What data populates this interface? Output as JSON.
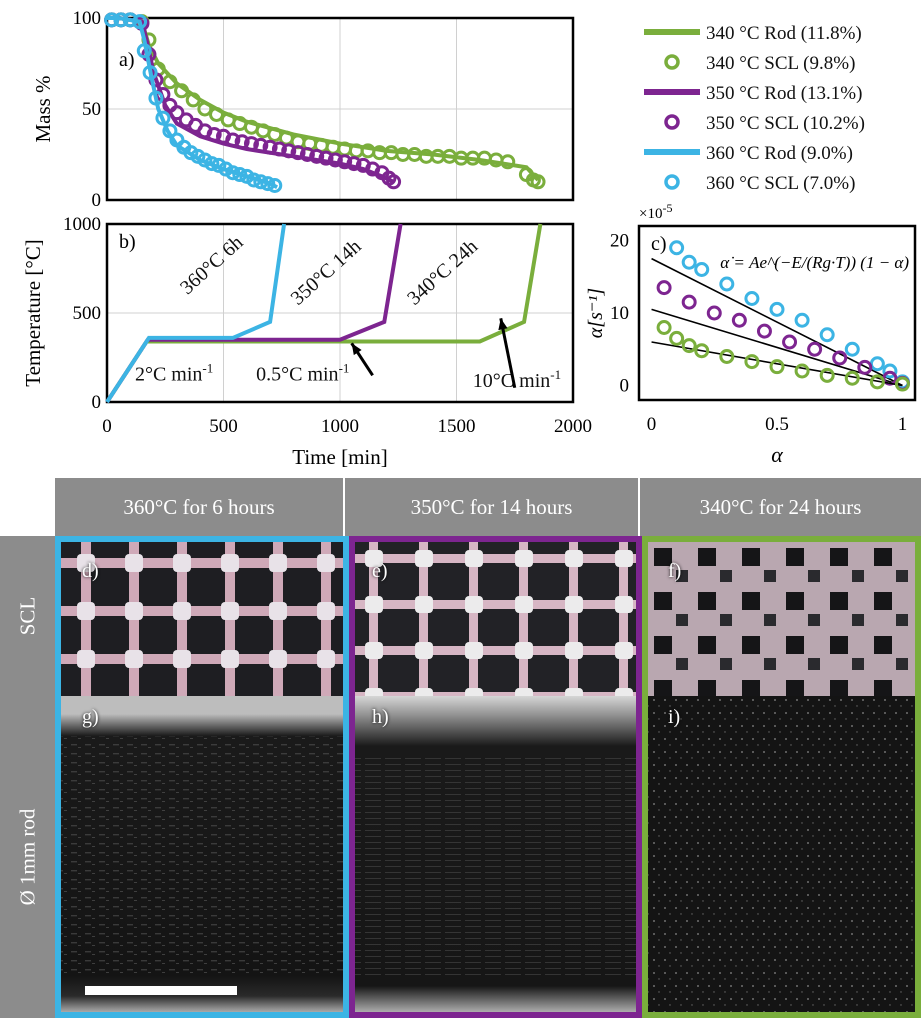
{
  "colors": {
    "c340": "#7aae3c",
    "c350": "#7d2590",
    "c360": "#3cb4e4",
    "header_bg": "#8c8c8c"
  },
  "legend": [
    {
      "label": "340 °C Rod (11.8%)",
      "color": "#7aae3c",
      "style": "line"
    },
    {
      "label": "340 °C SCL (9.8%)",
      "color": "#7aae3c",
      "style": "circle"
    },
    {
      "label": "350 °C Rod (13.1%)",
      "color": "#7d2590",
      "style": "line"
    },
    {
      "label": "350 °C SCL (10.2%)",
      "color": "#7d2590",
      "style": "circle"
    },
    {
      "label": "360 °C Rod (9.0%)",
      "color": "#3cb4e4",
      "style": "line"
    },
    {
      "label": "360 °C SCL (7.0%)",
      "color": "#3cb4e4",
      "style": "circle"
    }
  ],
  "chart_data": [
    {
      "type": "line",
      "panel_label": "a)",
      "ylabel": "Mass %",
      "xlim": [
        0,
        2000
      ],
      "ylim": [
        0,
        100
      ],
      "yticks": [
        0,
        50,
        100
      ],
      "series": [
        {
          "name": "340 °C Rod (11.8%)",
          "color": "#7aae3c",
          "style": "line",
          "points": [
            [
              0,
              100
            ],
            [
              50,
              100
            ],
            [
              150,
              98
            ],
            [
              180,
              85
            ],
            [
              220,
              75
            ],
            [
              300,
              64
            ],
            [
              400,
              55
            ],
            [
              500,
              48
            ],
            [
              600,
              43
            ],
            [
              800,
              36
            ],
            [
              1000,
              31
            ],
            [
              1200,
              27
            ],
            [
              1400,
              25
            ],
            [
              1600,
              22
            ],
            [
              1800,
              18
            ],
            [
              1850,
              11
            ]
          ]
        },
        {
          "name": "340 °C SCL (9.8%)",
          "color": "#7aae3c",
          "style": "circle",
          "points": [
            [
              20,
              99
            ],
            [
              60,
              99
            ],
            [
              100,
              99
            ],
            [
              150,
              98
            ],
            [
              180,
              88
            ],
            [
              220,
              72
            ],
            [
              270,
              65
            ],
            [
              320,
              60
            ],
            [
              370,
              55
            ],
            [
              420,
              50
            ],
            [
              470,
              47
            ],
            [
              520,
              44
            ],
            [
              570,
              42
            ],
            [
              620,
              40
            ],
            [
              670,
              38
            ],
            [
              720,
              36
            ],
            [
              770,
              34
            ],
            [
              820,
              32
            ],
            [
              870,
              31
            ],
            [
              920,
              30
            ],
            [
              970,
              29
            ],
            [
              1020,
              28
            ],
            [
              1070,
              27
            ],
            [
              1120,
              27
            ],
            [
              1170,
              26
            ],
            [
              1220,
              26
            ],
            [
              1270,
              25
            ],
            [
              1320,
              25
            ],
            [
              1370,
              24
            ],
            [
              1420,
              24
            ],
            [
              1470,
              24
            ],
            [
              1520,
              23
            ],
            [
              1570,
              23
            ],
            [
              1620,
              23
            ],
            [
              1670,
              22
            ],
            [
              1720,
              21
            ],
            [
              1800,
              14
            ],
            [
              1830,
              11
            ],
            [
              1850,
              10
            ]
          ]
        },
        {
          "name": "350 °C Rod (13.1%)",
          "color": "#7d2590",
          "style": "line",
          "points": [
            [
              0,
              100
            ],
            [
              50,
              100
            ],
            [
              150,
              98
            ],
            [
              170,
              88
            ],
            [
              200,
              70
            ],
            [
              250,
              52
            ],
            [
              300,
              42
            ],
            [
              400,
              35
            ],
            [
              500,
              31
            ],
            [
              600,
              28
            ],
            [
              800,
              24
            ],
            [
              1000,
              20
            ],
            [
              1100,
              17
            ],
            [
              1180,
              13
            ],
            [
              1230,
              10
            ]
          ]
        },
        {
          "name": "350 °C SCL (10.2%)",
          "color": "#7d2590",
          "style": "circle",
          "points": [
            [
              20,
              99
            ],
            [
              60,
              99
            ],
            [
              100,
              99
            ],
            [
              150,
              97
            ],
            [
              180,
              80
            ],
            [
              210,
              66
            ],
            [
              240,
              58
            ],
            [
              270,
              52
            ],
            [
              300,
              48
            ],
            [
              340,
              44
            ],
            [
              380,
              41
            ],
            [
              420,
              38
            ],
            [
              460,
              36
            ],
            [
              500,
              35
            ],
            [
              540,
              33
            ],
            [
              580,
              32
            ],
            [
              620,
              31
            ],
            [
              660,
              30
            ],
            [
              700,
              29
            ],
            [
              740,
              28
            ],
            [
              780,
              27
            ],
            [
              820,
              26
            ],
            [
              860,
              25
            ],
            [
              900,
              24
            ],
            [
              940,
              23
            ],
            [
              980,
              22
            ],
            [
              1020,
              21
            ],
            [
              1060,
              20
            ],
            [
              1100,
              19
            ],
            [
              1140,
              17
            ],
            [
              1180,
              15
            ],
            [
              1210,
              12
            ],
            [
              1230,
              10
            ]
          ]
        },
        {
          "name": "360 °C Rod (9.0%)",
          "color": "#3cb4e4",
          "style": "line",
          "points": [
            [
              0,
              100
            ],
            [
              50,
              100
            ],
            [
              140,
              98
            ],
            [
              160,
              88
            ],
            [
              190,
              68
            ],
            [
              220,
              50
            ],
            [
              260,
              38
            ],
            [
              300,
              30
            ],
            [
              400,
              22
            ],
            [
              500,
              17
            ],
            [
              600,
              13
            ],
            [
              700,
              9
            ],
            [
              730,
              7
            ]
          ]
        },
        {
          "name": "360 °C SCL (7.0%)",
          "color": "#3cb4e4",
          "style": "circle",
          "points": [
            [
              20,
              99
            ],
            [
              60,
              99
            ],
            [
              100,
              99
            ],
            [
              140,
              98
            ],
            [
              160,
              82
            ],
            [
              185,
              70
            ],
            [
              210,
              56
            ],
            [
              240,
              45
            ],
            [
              270,
              38
            ],
            [
              300,
              33
            ],
            [
              330,
              29
            ],
            [
              360,
              26
            ],
            [
              390,
              24
            ],
            [
              420,
              22
            ],
            [
              450,
              20
            ],
            [
              480,
              19
            ],
            [
              510,
              17
            ],
            [
              540,
              15
            ],
            [
              570,
              14
            ],
            [
              600,
              13
            ],
            [
              630,
              11
            ],
            [
              660,
              10
            ],
            [
              690,
              9
            ],
            [
              720,
              8
            ]
          ]
        }
      ]
    },
    {
      "type": "line",
      "panel_label": "b)",
      "ylabel": "Temperature [°C]",
      "xlabel": "Time [min]",
      "xlim": [
        0,
        2000
      ],
      "ylim": [
        0,
        1000
      ],
      "xticks": [
        0,
        500,
        1000,
        1500,
        2000
      ],
      "yticks": [
        0,
        500,
        1000
      ],
      "series": [
        {
          "name": "340 °C Rod (11.8%)",
          "color": "#7aae3c",
          "points": [
            [
              0,
              0
            ],
            [
              170,
              340
            ],
            [
              1600,
              340
            ],
            [
              1790,
              450
            ],
            [
              1860,
              1000
            ]
          ]
        },
        {
          "name": "350 °C Rod (13.1%)",
          "color": "#7d2590",
          "points": [
            [
              0,
              0
            ],
            [
              175,
              350
            ],
            [
              1000,
              350
            ],
            [
              1190,
              450
            ],
            [
              1260,
              1000
            ]
          ]
        },
        {
          "name": "360 °C Rod (9.0%)",
          "color": "#3cb4e4",
          "points": [
            [
              0,
              0
            ],
            [
              180,
              360
            ],
            [
              540,
              360
            ],
            [
              700,
              450
            ],
            [
              760,
              1000
            ]
          ]
        }
      ],
      "annotations": [
        {
          "text": "360°C 6h",
          "x": 345,
          "y": 600,
          "rot": -42
        },
        {
          "text": "350°C 14h",
          "x": 820,
          "y": 540,
          "rot": -42
        },
        {
          "text": "340°C 24h",
          "x": 1320,
          "y": 540,
          "rot": -42
        },
        {
          "text": "2°C min",
          "sup": "-1",
          "x": 120,
          "y": 120
        },
        {
          "text": "0.5°C min",
          "sup": "-1",
          "x": 640,
          "y": 120
        },
        {
          "text": "10°C min",
          "sup": "-1",
          "x": 1570,
          "y": 85
        }
      ],
      "arrows": [
        {
          "from": [
            1140,
            150
          ],
          "to": [
            1050,
            330
          ]
        },
        {
          "from": [
            1750,
            80
          ],
          "to": [
            1690,
            470
          ]
        }
      ]
    },
    {
      "type": "scatter",
      "panel_label": "c)",
      "xlabel": "α",
      "exponent": "×10",
      "exponent_sup": "-5",
      "equation": "α̇ = Ae^(−E/(Rg·T)) (1 − α)",
      "xlim": [
        -0.05,
        1.05
      ],
      "ylim": [
        -2,
        22
      ],
      "xticks": [
        0,
        0.5,
        1
      ],
      "yticks": [
        0,
        10,
        20
      ],
      "series": [
        {
          "name": "360 °C SCL (7.0%)",
          "color": "#3cb4e4",
          "points": [
            [
              0.1,
              19
            ],
            [
              0.15,
              17
            ],
            [
              0.2,
              16
            ],
            [
              0.3,
              14
            ],
            [
              0.4,
              12
            ],
            [
              0.5,
              10.5
            ],
            [
              0.6,
              9
            ],
            [
              0.7,
              7
            ],
            [
              0.8,
              5
            ],
            [
              0.9,
              3
            ],
            [
              0.95,
              2
            ],
            [
              1.0,
              0.5
            ]
          ],
          "fit": [
            [
              0,
              17.5
            ],
            [
              1,
              0
            ]
          ]
        },
        {
          "name": "350 °C SCL (10.2%)",
          "color": "#7d2590",
          "points": [
            [
              0.05,
              13.5
            ],
            [
              0.15,
              11.5
            ],
            [
              0.25,
              10
            ],
            [
              0.35,
              9
            ],
            [
              0.45,
              7.5
            ],
            [
              0.55,
              6
            ],
            [
              0.65,
              5
            ],
            [
              0.75,
              3.8
            ],
            [
              0.85,
              2.5
            ],
            [
              0.95,
              1
            ],
            [
              1.0,
              0.3
            ]
          ],
          "fit": [
            [
              0,
              10.5
            ],
            [
              1,
              0
            ]
          ]
        },
        {
          "name": "340 °C SCL (9.8%)",
          "color": "#7aae3c",
          "points": [
            [
              0.05,
              8
            ],
            [
              0.1,
              6.5
            ],
            [
              0.15,
              5.5
            ],
            [
              0.2,
              4.8
            ],
            [
              0.3,
              4
            ],
            [
              0.4,
              3.3
            ],
            [
              0.5,
              2.6
            ],
            [
              0.6,
              2
            ],
            [
              0.7,
              1.4
            ],
            [
              0.8,
              1
            ],
            [
              0.9,
              0.5
            ],
            [
              1.0,
              0.2
            ]
          ],
          "fit": [
            [
              0,
              6
            ],
            [
              1,
              0
            ]
          ]
        }
      ]
    }
  ],
  "grid": {
    "columns": [
      {
        "header": "360°C for 6 hours",
        "color": "#3cb4e4",
        "scl_label": "d)",
        "rod_label": "g)"
      },
      {
        "header": "350°C for 14 hours",
        "color": "#7d2590",
        "scl_label": "e)",
        "rod_label": "h)"
      },
      {
        "header": "340°C for 24 hours",
        "color": "#7aae3c",
        "scl_label": "f)",
        "rod_label": "i)"
      }
    ],
    "rows": [
      {
        "label": "SCL"
      },
      {
        "label": "Ø 1mm rod"
      }
    ]
  }
}
